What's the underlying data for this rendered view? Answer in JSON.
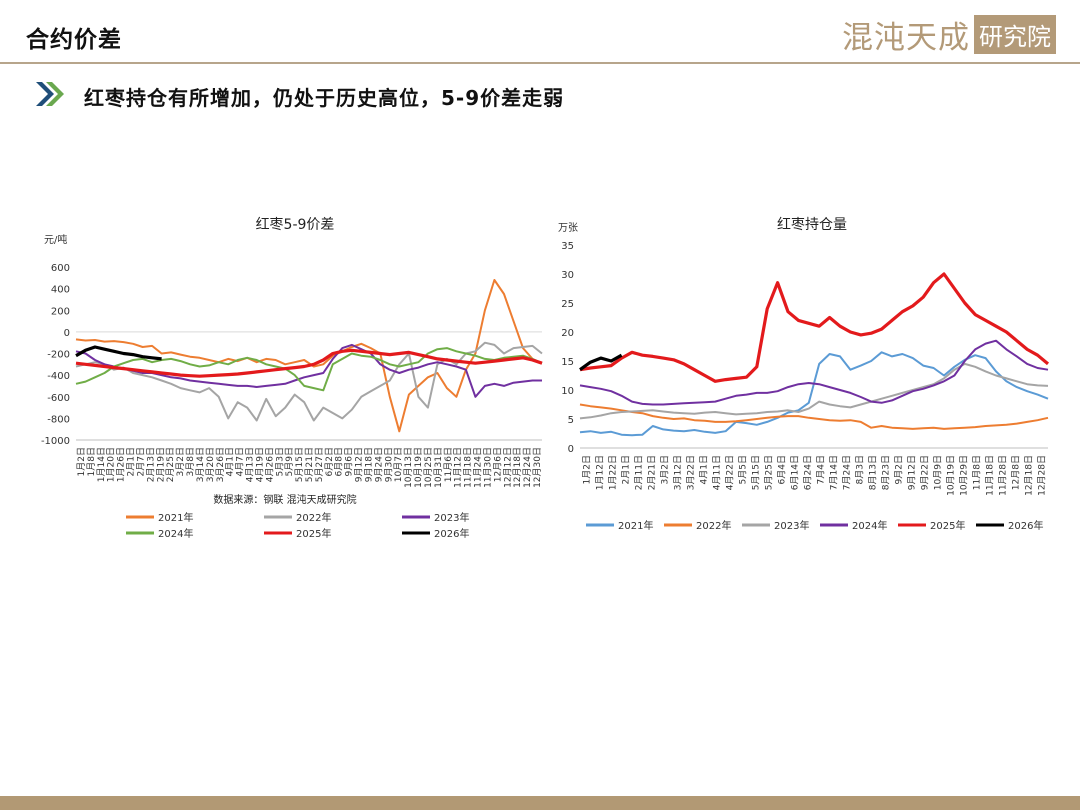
{
  "header": {
    "title": "合约价差",
    "logo_main": "混沌天成",
    "logo_box": "研究院"
  },
  "subtitle": "红枣持仓有所增加，仍处于历史高位，5-9价差走弱",
  "colors": {
    "2021": "#5b9bd5",
    "2022": "#ed7d31",
    "2023": "#a5a5a5",
    "2024": "#7030a0",
    "2025": "#e31a1c",
    "2026": "#000000",
    "accent": "#b29974"
  },
  "chart_data": [
    {
      "type": "line",
      "title": "红枣5-9价差",
      "ylabel": "元/吨",
      "ylim": [
        -1000,
        600
      ],
      "yticks": [
        "600",
        "400",
        "200",
        "0",
        "-200",
        "-400",
        "-600",
        "-800",
        "-1000"
      ],
      "xlabels": [
        "1月2日",
        "1月8日",
        "1月14日",
        "1月20日",
        "1月26日",
        "2月1日",
        "2月7日",
        "2月13日",
        "2月19日",
        "2月25日",
        "3月2日",
        "3月8日",
        "3月14日",
        "3月20日",
        "3月26日",
        "4月1日",
        "4月7日",
        "4月13日",
        "4月19日",
        "4月26日",
        "5月3日",
        "5月9日",
        "5月15日",
        "5月21日",
        "5月27日",
        "6月2日",
        "6月8日",
        "9月6日",
        "9月12日",
        "9月18日",
        "9月24日",
        "9月30日",
        "10月7日",
        "10月13日",
        "10月19日",
        "10月25日",
        "10月31日",
        "11月6日",
        "11月12日",
        "11月18日",
        "11月24日",
        "11月30日",
        "12月6日",
        "12月12日",
        "12月18日",
        "12月24日",
        "12月30日"
      ],
      "source": "数据来源：钢联  混沌天成研究院",
      "series": [
        {
          "name": "2021年",
          "key": "2022",
          "values": [
            -70,
            -80,
            -75,
            -90,
            -85,
            -95,
            -110,
            -140,
            -130,
            -200,
            -190,
            -210,
            -230,
            -240,
            -260,
            -280,
            -250,
            -270,
            -240,
            -280,
            -250,
            -260,
            -300,
            -280,
            -260,
            -320,
            -300,
            -220,
            -180,
            -140,
            -110,
            -150,
            -200,
            -600,
            -920,
            -580,
            -500,
            -420,
            -380,
            -520,
            -600,
            -350,
            -200,
            200,
            480,
            350,
            100,
            -150,
            -250
          ]
        },
        {
          "name": "2022年",
          "key": "2023",
          "values": [
            -320,
            -300,
            -280,
            -300,
            -350,
            -330,
            -380,
            -400,
            -420,
            -450,
            -480,
            -520,
            -540,
            -560,
            -520,
            -600,
            -800,
            -650,
            -700,
            -820,
            -620,
            -780,
            -700,
            -580,
            -650,
            -820,
            -700,
            -750,
            -800,
            -720,
            -600,
            -550,
            -500,
            -450,
            -300,
            -200,
            -600,
            -700,
            -300,
            -250,
            -300,
            -200,
            -180,
            -100,
            -120,
            -200,
            -150,
            -140,
            -130,
            -200
          ]
        },
        {
          "name": "2023年",
          "key": "2024",
          "values": [
            -180,
            -200,
            -260,
            -300,
            -320,
            -340,
            -360,
            -380,
            -380,
            -400,
            -420,
            -430,
            -450,
            -460,
            -470,
            -480,
            -490,
            -500,
            -500,
            -510,
            -500,
            -490,
            -480,
            -450,
            -420,
            -400,
            -380,
            -250,
            -150,
            -120,
            -160,
            -200,
            -300,
            -350,
            -380,
            -350,
            -330,
            -300,
            -280,
            -300,
            -320,
            -350,
            -600,
            -500,
            -480,
            -500,
            -470,
            -460,
            -450,
            -450
          ]
        },
        {
          "name": "2024年",
          "key": "2024b",
          "values": [
            -480,
            -460,
            -420,
            -380,
            -320,
            -290,
            -260,
            -250,
            -280,
            -260,
            -250,
            -270,
            -300,
            -320,
            -310,
            -280,
            -300,
            -260,
            -240,
            -260,
            -300,
            -320,
            -340,
            -400,
            -500,
            -520,
            -540,
            -300,
            -250,
            -200,
            -220,
            -230,
            -260,
            -300,
            -320,
            -300,
            -280,
            -200,
            -160,
            -150,
            -180,
            -200,
            -220,
            -250,
            -260,
            -240,
            -230,
            -220,
            -250,
            -290
          ]
        },
        {
          "name": "2025年",
          "key": "2025",
          "values": [
            -290,
            -300,
            -310,
            -320,
            -330,
            -340,
            -350,
            -360,
            -370,
            -380,
            -390,
            -400,
            -405,
            -410,
            -405,
            -400,
            -395,
            -390,
            -380,
            -370,
            -360,
            -350,
            -340,
            -330,
            -320,
            -300,
            -260,
            -200,
            -180,
            -170,
            -180,
            -190,
            -200,
            -210,
            -200,
            -190,
            -210,
            -230,
            -250,
            -260,
            -270,
            -280,
            -290,
            -280,
            -270,
            -260,
            -250,
            -240,
            -260,
            -290
          ]
        },
        {
          "name": "2026年",
          "key": "2026",
          "values": [
            -220,
            -170,
            -140,
            -160,
            -180,
            -200,
            -210,
            -230,
            -240,
            -250
          ]
        }
      ]
    },
    {
      "type": "line",
      "title": "红枣持仓量",
      "ylabel": "万张",
      "ylim": [
        0,
        35
      ],
      "yticks": [
        "35",
        "30",
        "25",
        "20",
        "15",
        "10",
        "5",
        "0"
      ],
      "xlabels": [
        "1月2日",
        "1月12日",
        "1月22日",
        "2月1日",
        "2月11日",
        "2月21日",
        "3月2日",
        "3月12日",
        "3月22日",
        "4月1日",
        "4月11日",
        "4月22日",
        "5月5日",
        "5月15日",
        "5月25日",
        "6月4日",
        "6月14日",
        "6月24日",
        "7月4日",
        "7月14日",
        "7月24日",
        "8月3日",
        "8月13日",
        "8月23日",
        "9月2日",
        "9月12日",
        "9月22日",
        "10月9日",
        "10月19日",
        "10月29日",
        "11月8日",
        "11月18日",
        "11月28日",
        "12月8日",
        "12月18日",
        "12月28日"
      ],
      "series": [
        {
          "name": "2021年",
          "key": "2021",
          "values": [
            2.7,
            2.9,
            2.6,
            2.8,
            2.3,
            2.2,
            2.3,
            3.8,
            3.2,
            3.0,
            2.9,
            3.1,
            2.8,
            2.6,
            2.9,
            4.5,
            4.3,
            4.0,
            4.5,
            5.2,
            6.1,
            6.5,
            7.8,
            14.5,
            16.2,
            15.8,
            13.5,
            14.2,
            15.0,
            16.5,
            15.8,
            16.2,
            15.5,
            14.2,
            13.8,
            12.5,
            14.0,
            15.2,
            16.0,
            15.5,
            13.2,
            11.5,
            10.5,
            9.8,
            9.2,
            8.5
          ]
        },
        {
          "name": "2022年",
          "key": "2022",
          "values": [
            7.5,
            7.2,
            7.0,
            6.8,
            6.5,
            6.2,
            6.0,
            5.5,
            5.2,
            5.0,
            5.1,
            4.8,
            4.7,
            4.5,
            4.5,
            4.6,
            4.8,
            5.0,
            5.2,
            5.4,
            5.5,
            5.5,
            5.2,
            5.0,
            4.8,
            4.7,
            4.8,
            4.5,
            3.5,
            3.8,
            3.5,
            3.4,
            3.3,
            3.4,
            3.5,
            3.3,
            3.4,
            3.5,
            3.6,
            3.8,
            3.9,
            4.0,
            4.2,
            4.5,
            4.8,
            5.2
          ]
        },
        {
          "name": "2023年",
          "key": "2023",
          "values": [
            5.1,
            5.3,
            5.6,
            6.0,
            6.2,
            6.3,
            6.4,
            6.5,
            6.3,
            6.1,
            6.0,
            5.9,
            6.1,
            6.2,
            6.0,
            5.8,
            5.9,
            6.0,
            6.2,
            6.3,
            6.5,
            6.2,
            6.8,
            8.0,
            7.5,
            7.2,
            7.0,
            7.5,
            8.0,
            8.5,
            9.0,
            9.5,
            10.0,
            10.5,
            11.0,
            12.0,
            13.5,
            14.5,
            14.0,
            13.2,
            12.5,
            12.0,
            11.5,
            11.0,
            10.8,
            10.7
          ]
        },
        {
          "name": "2024年",
          "key": "2024",
          "values": [
            10.8,
            10.5,
            10.2,
            9.8,
            9.0,
            8.0,
            7.6,
            7.5,
            7.5,
            7.6,
            7.7,
            7.8,
            7.9,
            8.0,
            8.5,
            9.0,
            9.2,
            9.5,
            9.5,
            9.8,
            10.5,
            11.0,
            11.2,
            11.0,
            10.5,
            10.0,
            9.5,
            8.8,
            8.0,
            7.8,
            8.2,
            9.0,
            9.8,
            10.2,
            10.8,
            11.5,
            12.5,
            15.0,
            17.0,
            18.0,
            18.5,
            17.0,
            15.8,
            14.5,
            13.8,
            13.5
          ]
        },
        {
          "name": "2025年",
          "key": "2025",
          "values": [
            13.5,
            13.8,
            14.0,
            14.2,
            15.5,
            16.5,
            16.0,
            15.8,
            15.5,
            15.2,
            14.5,
            13.5,
            12.5,
            11.5,
            11.8,
            12.0,
            12.2,
            14.0,
            24.0,
            28.5,
            23.5,
            22.0,
            21.5,
            21.0,
            22.5,
            21.0,
            20.0,
            19.5,
            19.8,
            20.5,
            22.0,
            23.5,
            24.5,
            26.0,
            28.5,
            30.0,
            27.5,
            25.0,
            23.0,
            22.0,
            21.0,
            20.0,
            18.5,
            17.0,
            16.0,
            14.5
          ]
        },
        {
          "name": "2026年",
          "key": "2026",
          "values": [
            13.5,
            14.8,
            15.5,
            15.0,
            16.0
          ]
        }
      ]
    }
  ]
}
